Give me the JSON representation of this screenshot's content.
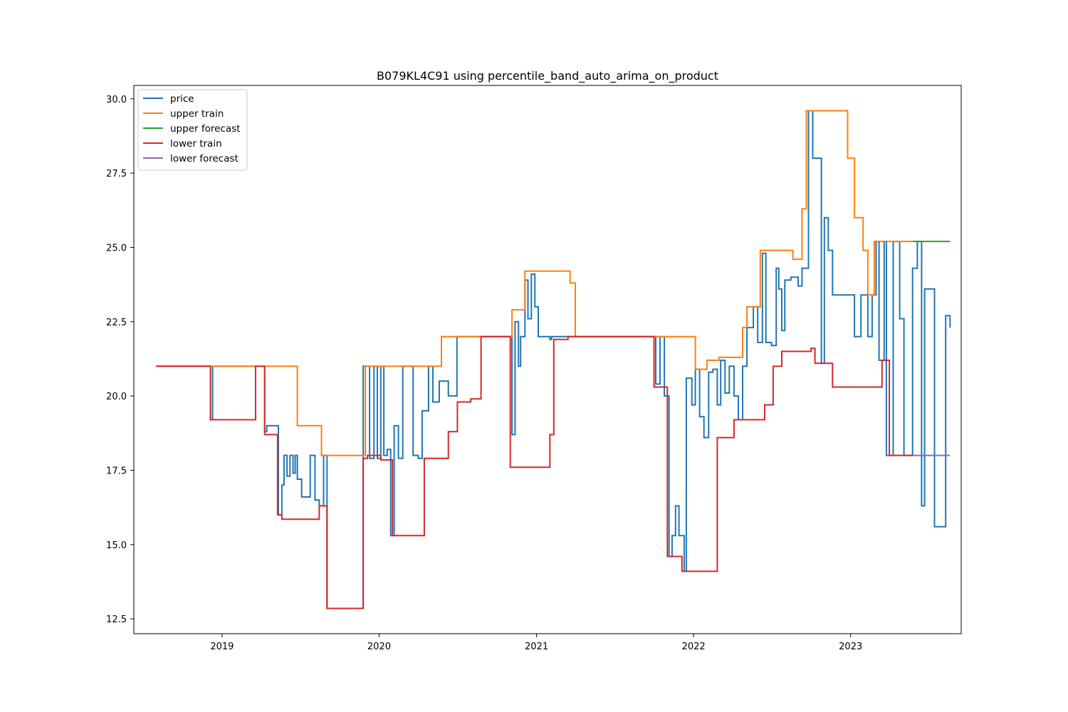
{
  "chart_data": {
    "type": "line",
    "title": "B079KL4C91 using percentile_band_auto_arima_on_product",
    "xlabel": "",
    "ylabel": "",
    "xlim": [
      "2018-06-10",
      "2023-09-15"
    ],
    "ylim": [
      12.0,
      30.45
    ],
    "x_ticks": [
      "2019-01-01",
      "2020-01-01",
      "2021-01-01",
      "2022-01-01",
      "2023-01-01"
    ],
    "x_tick_labels": [
      "2019",
      "2020",
      "2021",
      "2022",
      "2023"
    ],
    "y_ticks": [
      12.5,
      15.0,
      17.5,
      20.0,
      22.5,
      25.0,
      27.5,
      30.0
    ],
    "y_tick_labels": [
      "12.5",
      "15.0",
      "17.5",
      "20.0",
      "22.5",
      "25.0",
      "27.5",
      "30.0"
    ],
    "grid": false,
    "legend_position": "upper-left",
    "step": true,
    "series": [
      {
        "name": "price",
        "color": "#1f77b4",
        "points": [
          [
            "2018-08-01",
            21.0
          ],
          [
            "2018-12-01",
            21.0
          ],
          [
            "2018-12-05",
            19.2
          ],
          [
            "2018-12-10",
            21.0
          ],
          [
            "2019-03-20",
            21.0
          ],
          [
            "2019-04-10",
            18.8
          ],
          [
            "2019-04-15",
            19.0
          ],
          [
            "2019-05-08",
            19.0
          ],
          [
            "2019-05-12",
            16.0
          ],
          [
            "2019-05-20",
            17.0
          ],
          [
            "2019-05-25",
            18.0
          ],
          [
            "2019-06-01",
            17.3
          ],
          [
            "2019-06-08",
            18.0
          ],
          [
            "2019-06-15",
            17.4
          ],
          [
            "2019-06-20",
            18.0
          ],
          [
            "2019-06-25",
            17.2
          ],
          [
            "2019-07-05",
            16.6
          ],
          [
            "2019-07-25",
            18.0
          ],
          [
            "2019-08-05",
            16.5
          ],
          [
            "2019-08-15",
            16.3
          ],
          [
            "2019-08-25",
            18.0
          ],
          [
            "2019-09-02",
            12.85
          ],
          [
            "2019-11-25",
            21.0
          ],
          [
            "2019-12-10",
            17.9
          ],
          [
            "2019-12-20",
            21.0
          ],
          [
            "2019-12-28",
            17.9
          ],
          [
            "2020-01-05",
            21.0
          ],
          [
            "2020-01-12",
            18.0
          ],
          [
            "2020-01-20",
            18.2
          ],
          [
            "2020-01-28",
            15.3
          ],
          [
            "2020-02-05",
            19.0
          ],
          [
            "2020-02-15",
            17.9
          ],
          [
            "2020-02-25",
            21.0
          ],
          [
            "2020-03-10",
            21.0
          ],
          [
            "2020-03-20",
            18.0
          ],
          [
            "2020-04-01",
            17.9
          ],
          [
            "2020-04-10",
            19.5
          ],
          [
            "2020-04-25",
            21.0
          ],
          [
            "2020-05-05",
            19.8
          ],
          [
            "2020-05-20",
            20.5
          ],
          [
            "2020-06-10",
            20.0
          ],
          [
            "2020-06-30",
            22.0
          ],
          [
            "2020-11-01",
            22.0
          ],
          [
            "2020-11-05",
            18.7
          ],
          [
            "2020-11-12",
            22.5
          ],
          [
            "2020-11-20",
            21.0
          ],
          [
            "2020-11-25",
            22.0
          ],
          [
            "2020-12-05",
            23.9
          ],
          [
            "2020-12-12",
            22.6
          ],
          [
            "2020-12-20",
            24.1
          ],
          [
            "2020-12-28",
            23.0
          ],
          [
            "2021-01-05",
            22.0
          ],
          [
            "2021-02-01",
            21.9
          ],
          [
            "2021-02-05",
            22.0
          ],
          [
            "2021-10-01",
            22.0
          ],
          [
            "2021-10-05",
            20.4
          ],
          [
            "2021-10-15",
            22.0
          ],
          [
            "2021-10-25",
            20.0
          ],
          [
            "2021-11-05",
            14.6
          ],
          [
            "2021-11-12",
            15.3
          ],
          [
            "2021-11-20",
            16.3
          ],
          [
            "2021-11-28",
            15.3
          ],
          [
            "2021-12-10",
            14.1
          ],
          [
            "2021-12-15",
            20.6
          ],
          [
            "2021-12-28",
            19.7
          ],
          [
            "2022-01-05",
            20.9
          ],
          [
            "2022-01-15",
            19.3
          ],
          [
            "2022-01-25",
            18.6
          ],
          [
            "2022-02-05",
            20.8
          ],
          [
            "2022-02-15",
            20.9
          ],
          [
            "2022-02-25",
            19.7
          ],
          [
            "2022-03-05",
            21.2
          ],
          [
            "2022-03-15",
            20.1
          ],
          [
            "2022-03-25",
            21.0
          ],
          [
            "2022-04-05",
            20.0
          ],
          [
            "2022-04-15",
            19.2
          ],
          [
            "2022-04-25",
            21.0
          ],
          [
            "2022-05-05",
            22.3
          ],
          [
            "2022-05-20",
            23.0
          ],
          [
            "2022-05-30",
            21.8
          ],
          [
            "2022-06-10",
            24.8
          ],
          [
            "2022-06-18",
            21.8
          ],
          [
            "2022-07-01",
            21.7
          ],
          [
            "2022-07-12",
            24.3
          ],
          [
            "2022-07-18",
            23.6
          ],
          [
            "2022-07-25",
            22.2
          ],
          [
            "2022-08-01",
            23.9
          ],
          [
            "2022-08-15",
            24.0
          ],
          [
            "2022-09-01",
            23.7
          ],
          [
            "2022-09-10",
            24.3
          ],
          [
            "2022-09-25",
            29.6
          ],
          [
            "2022-10-05",
            28.0
          ],
          [
            "2022-10-25",
            21.1
          ],
          [
            "2022-11-01",
            26.0
          ],
          [
            "2022-11-10",
            24.9
          ],
          [
            "2022-11-20",
            23.4
          ],
          [
            "2022-12-20",
            23.4
          ],
          [
            "2023-01-10",
            22.0
          ],
          [
            "2023-01-25",
            23.4
          ],
          [
            "2023-02-10",
            22.0
          ],
          [
            "2023-02-20",
            23.4
          ],
          [
            "2023-03-01",
            25.2
          ],
          [
            "2023-03-08",
            21.2
          ],
          [
            "2023-03-20",
            25.2
          ],
          [
            "2023-03-25",
            18.0
          ],
          [
            "2023-04-10",
            25.2
          ],
          [
            "2023-04-25",
            22.6
          ],
          [
            "2023-05-05",
            18.0
          ],
          [
            "2023-05-25",
            24.3
          ],
          [
            "2023-06-05",
            25.2
          ],
          [
            "2023-06-15",
            16.3
          ],
          [
            "2023-06-22",
            23.6
          ],
          [
            "2023-07-15",
            15.6
          ],
          [
            "2023-08-10",
            22.7
          ],
          [
            "2023-08-20",
            22.3
          ]
        ]
      },
      {
        "name": "upper train",
        "color": "#ff7f0e",
        "points": [
          [
            "2018-08-01",
            21.0
          ],
          [
            "2019-06-20",
            21.0
          ],
          [
            "2019-06-25",
            19.0
          ],
          [
            "2019-08-20",
            18.0
          ],
          [
            "2019-11-25",
            18.0
          ],
          [
            "2019-11-30",
            21.0
          ],
          [
            "2020-05-20",
            21.0
          ],
          [
            "2020-05-25",
            22.0
          ],
          [
            "2020-11-01",
            22.0
          ],
          [
            "2020-11-05",
            22.9
          ],
          [
            "2020-12-05",
            24.2
          ],
          [
            "2021-03-20",
            23.8
          ],
          [
            "2021-04-01",
            22.0
          ],
          [
            "2022-01-01",
            22.0
          ],
          [
            "2022-01-05",
            20.9
          ],
          [
            "2022-02-01",
            21.2
          ],
          [
            "2022-03-01",
            21.3
          ],
          [
            "2022-04-25",
            22.3
          ],
          [
            "2022-05-05",
            23.0
          ],
          [
            "2022-06-05",
            24.9
          ],
          [
            "2022-08-20",
            24.6
          ],
          [
            "2022-09-10",
            26.3
          ],
          [
            "2022-09-20",
            29.6
          ],
          [
            "2022-12-25",
            28.0
          ],
          [
            "2023-01-10",
            26.0
          ],
          [
            "2023-01-30",
            24.9
          ],
          [
            "2023-02-10",
            23.4
          ],
          [
            "2023-02-25",
            25.2
          ],
          [
            "2023-05-25",
            25.2
          ]
        ]
      },
      {
        "name": "upper forecast",
        "color": "#2ca02c",
        "points": [
          [
            "2023-05-25",
            25.2
          ],
          [
            "2023-08-20",
            25.2
          ]
        ]
      },
      {
        "name": "lower train",
        "color": "#d62728",
        "points": [
          [
            "2018-08-01",
            21.0
          ],
          [
            "2018-12-01",
            21.0
          ],
          [
            "2018-12-05",
            19.2
          ],
          [
            "2019-03-20",
            21.0
          ],
          [
            "2019-04-10",
            18.7
          ],
          [
            "2019-05-10",
            16.0
          ],
          [
            "2019-05-20",
            15.85
          ],
          [
            "2019-08-15",
            16.3
          ],
          [
            "2019-09-02",
            12.85
          ],
          [
            "2019-11-25",
            17.9
          ],
          [
            "2019-12-05",
            18.0
          ],
          [
            "2020-01-05",
            17.85
          ],
          [
            "2020-02-01",
            15.3
          ],
          [
            "2020-04-15",
            17.9
          ],
          [
            "2020-06-10",
            18.8
          ],
          [
            "2020-07-01",
            19.8
          ],
          [
            "2020-08-01",
            19.9
          ],
          [
            "2020-08-25",
            22.0
          ],
          [
            "2020-11-01",
            17.6
          ],
          [
            "2021-02-01",
            18.7
          ],
          [
            "2021-02-10",
            21.9
          ],
          [
            "2021-03-15",
            22.0
          ],
          [
            "2021-10-01",
            20.3
          ],
          [
            "2021-11-01",
            14.6
          ],
          [
            "2021-12-05",
            14.1
          ],
          [
            "2022-02-25",
            18.6
          ],
          [
            "2022-04-05",
            19.2
          ],
          [
            "2022-06-15",
            19.7
          ],
          [
            "2022-07-05",
            21.0
          ],
          [
            "2022-07-25",
            21.5
          ],
          [
            "2022-10-01",
            21.6
          ],
          [
            "2022-10-10",
            21.1
          ],
          [
            "2022-11-05",
            21.1
          ],
          [
            "2022-11-20",
            20.3
          ],
          [
            "2023-03-15",
            21.2
          ],
          [
            "2023-04-01",
            18.0
          ],
          [
            "2023-05-25",
            18.0
          ]
        ]
      },
      {
        "name": "lower forecast",
        "color": "#9467bd",
        "points": [
          [
            "2023-05-25",
            18.0
          ],
          [
            "2023-08-20",
            18.0
          ]
        ]
      }
    ]
  }
}
